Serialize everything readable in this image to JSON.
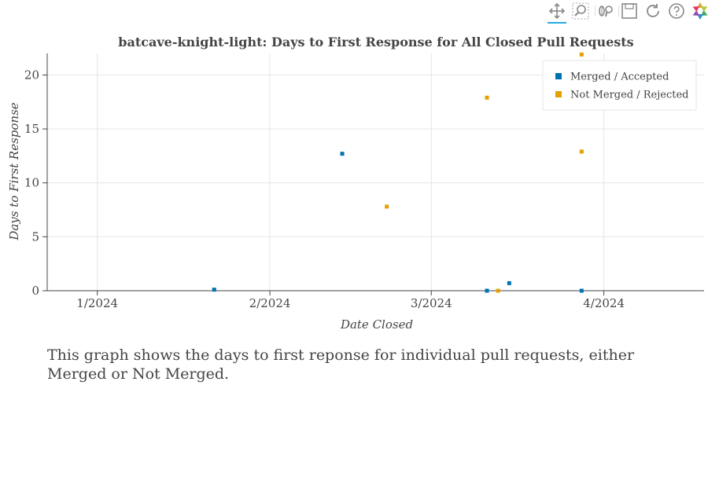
{
  "toolbar": {
    "tools": [
      {
        "name": "pan-tool",
        "icon": "pan-icon",
        "active": true
      },
      {
        "name": "box-zoom-tool",
        "icon": "box-zoom-icon",
        "active": false
      },
      {
        "name": "wheel-zoom-tool",
        "icon": "wheel-zoom-icon",
        "active": false
      },
      {
        "name": "save-tool",
        "icon": "save-icon",
        "active": false
      },
      {
        "name": "reset-tool",
        "icon": "reset-icon",
        "active": false
      },
      {
        "name": "help-tool",
        "icon": "help-icon",
        "active": false
      },
      {
        "name": "bokeh-logo",
        "icon": "bokeh-logo-icon",
        "active": false
      }
    ]
  },
  "caption": "This graph shows the days to first reponse for individual pull requests, either Merged or Not Merged.",
  "chart_data": {
    "type": "scatter",
    "title": "batcave-knight-light: Days to First Response for All Closed Pull Requests",
    "xlabel": "Date Closed",
    "ylabel": "Days to First Response",
    "x_axis_type": "datetime",
    "xlim": [
      "2023-12-23",
      "2024-04-19"
    ],
    "ylim": [
      0,
      22
    ],
    "x_ticks": [
      {
        "value": "2024-01-01",
        "label": "1/2024"
      },
      {
        "value": "2024-02-01",
        "label": "2/2024"
      },
      {
        "value": "2024-03-01",
        "label": "3/2024"
      },
      {
        "value": "2024-04-01",
        "label": "4/2024"
      }
    ],
    "y_ticks": [
      0,
      5,
      10,
      15,
      20
    ],
    "grid": true,
    "legend_position": "top-right",
    "series": [
      {
        "name": "Merged / Accepted",
        "color": "#0072b2",
        "points": [
          {
            "x": "2024-01-22",
            "y": 0.1
          },
          {
            "x": "2024-02-14",
            "y": 12.7
          },
          {
            "x": "2024-03-11",
            "y": 0
          },
          {
            "x": "2024-03-15",
            "y": 0.7
          },
          {
            "x": "2024-03-28",
            "y": 0
          }
        ]
      },
      {
        "name": "Not Merged / Rejected",
        "color": "#e69f00",
        "points": [
          {
            "x": "2024-02-22",
            "y": 7.8
          },
          {
            "x": "2024-03-11",
            "y": 17.9
          },
          {
            "x": "2024-03-13",
            "y": 0
          },
          {
            "x": "2024-03-28",
            "y": 21.9
          },
          {
            "x": "2024-03-28",
            "y": 12.9
          }
        ]
      }
    ]
  }
}
